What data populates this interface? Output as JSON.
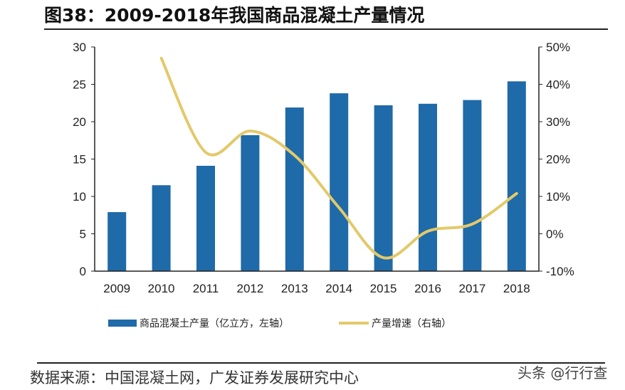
{
  "title": "图38：2009-2018年我国商品混凝土产量情况",
  "source": "数据来源：中国混凝土网，广发证券发展研究中心",
  "watermark": "头条 @行行查",
  "chart_data": {
    "type": "bar+line",
    "title": "图38：2009-2018年我国商品混凝土产量情况",
    "categories": [
      "2009",
      "2010",
      "2011",
      "2012",
      "2013",
      "2014",
      "2015",
      "2016",
      "2017",
      "2018"
    ],
    "series": [
      {
        "name": "商品混凝土产量（亿立方，左轴）",
        "type": "bar",
        "axis": "left",
        "color": "#1f6aa8",
        "values": [
          7.9,
          11.5,
          14.1,
          18.2,
          21.9,
          23.8,
          22.2,
          22.4,
          22.9,
          25.4
        ]
      },
      {
        "name": "产量增速（右轴）",
        "type": "line",
        "axis": "right",
        "color": "#e3c96a",
        "values": [
          null,
          47,
          21.8,
          27.5,
          21,
          7,
          -6.4,
          0.7,
          2.6,
          10.8
        ]
      }
    ],
    "left_axis": {
      "ylim": [
        0,
        30
      ],
      "ticks": [
        "0",
        "5",
        "10",
        "15",
        "20",
        "25",
        "30"
      ]
    },
    "right_axis": {
      "ylim": [
        -10,
        50
      ],
      "ticks": [
        "-10%",
        "0%",
        "10%",
        "20%",
        "30%",
        "40%",
        "50%"
      ]
    },
    "grid": false,
    "legend": "bottom"
  }
}
